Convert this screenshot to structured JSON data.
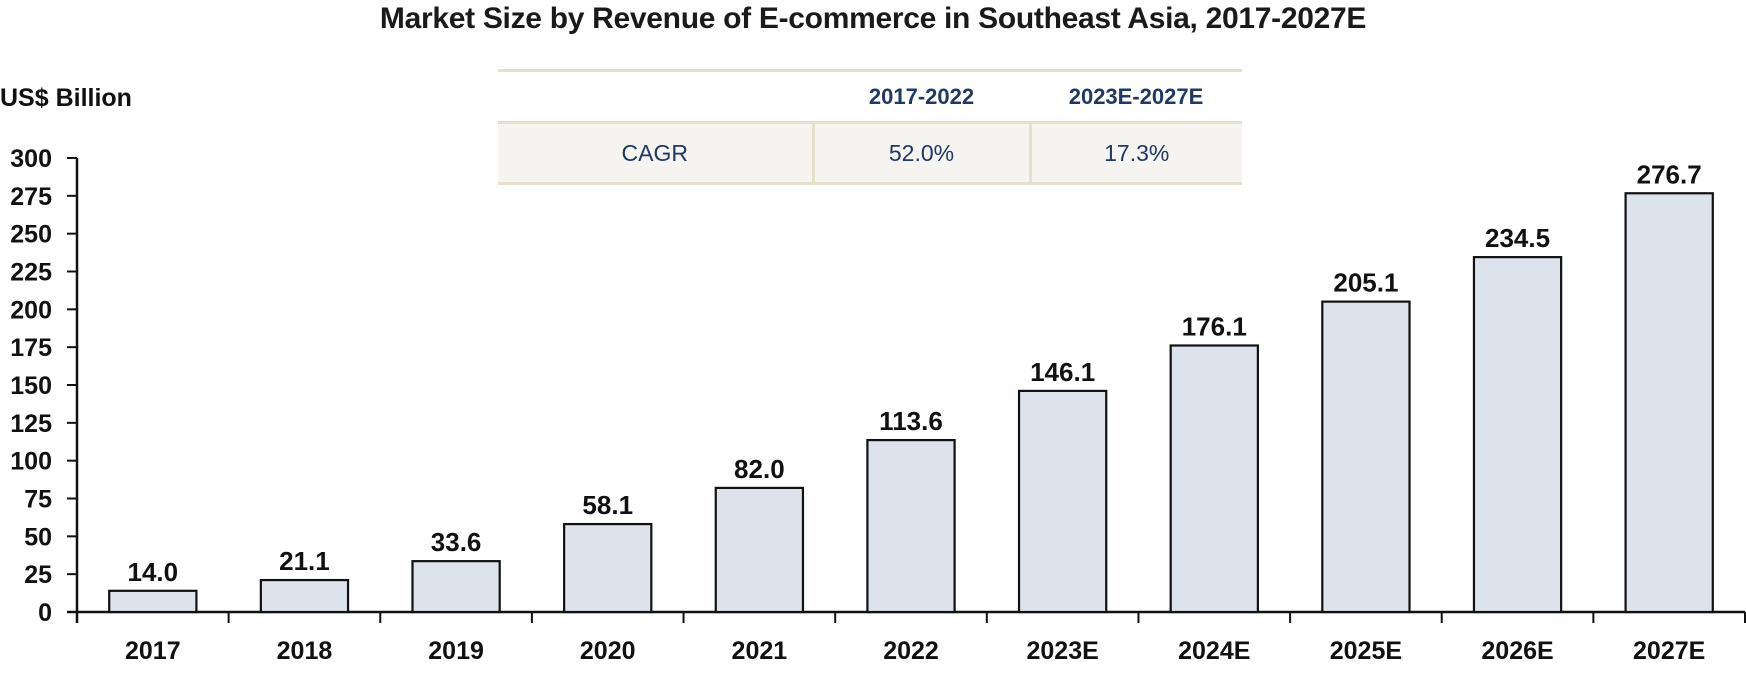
{
  "chart_data": {
    "type": "bar",
    "title": "Market Size by Revenue of E-commerce in Southeast Asia, 2017-2027E",
    "ylabel": "US$ Billion",
    "xlabel": "",
    "categories": [
      "2017",
      "2018",
      "2019",
      "2020",
      "2021",
      "2022",
      "2023E",
      "2024E",
      "2025E",
      "2026E",
      "2027E"
    ],
    "values": [
      14.0,
      21.1,
      33.6,
      58.1,
      82.0,
      113.6,
      146.1,
      176.1,
      205.1,
      234.5,
      276.7
    ],
    "value_labels": [
      "14.0",
      "21.1",
      "33.6",
      "58.1",
      "82.0",
      "113.6",
      "146.1",
      "176.1",
      "205.1",
      "234.5",
      "276.7"
    ],
    "ylim": [
      0,
      300
    ],
    "yticks": [
      0,
      25,
      50,
      75,
      100,
      125,
      150,
      175,
      200,
      225,
      250,
      275,
      300
    ],
    "grid": false,
    "legend": "none",
    "bar_color": "#dde3ed",
    "bar_edge_color": "#111111"
  },
  "cagr_table": {
    "headers": [
      "",
      "2017-2022",
      "2023E-2027E"
    ],
    "row_label": "CAGR",
    "values": [
      "52.0%",
      "17.3%"
    ],
    "text_color": "#1f3864"
  }
}
